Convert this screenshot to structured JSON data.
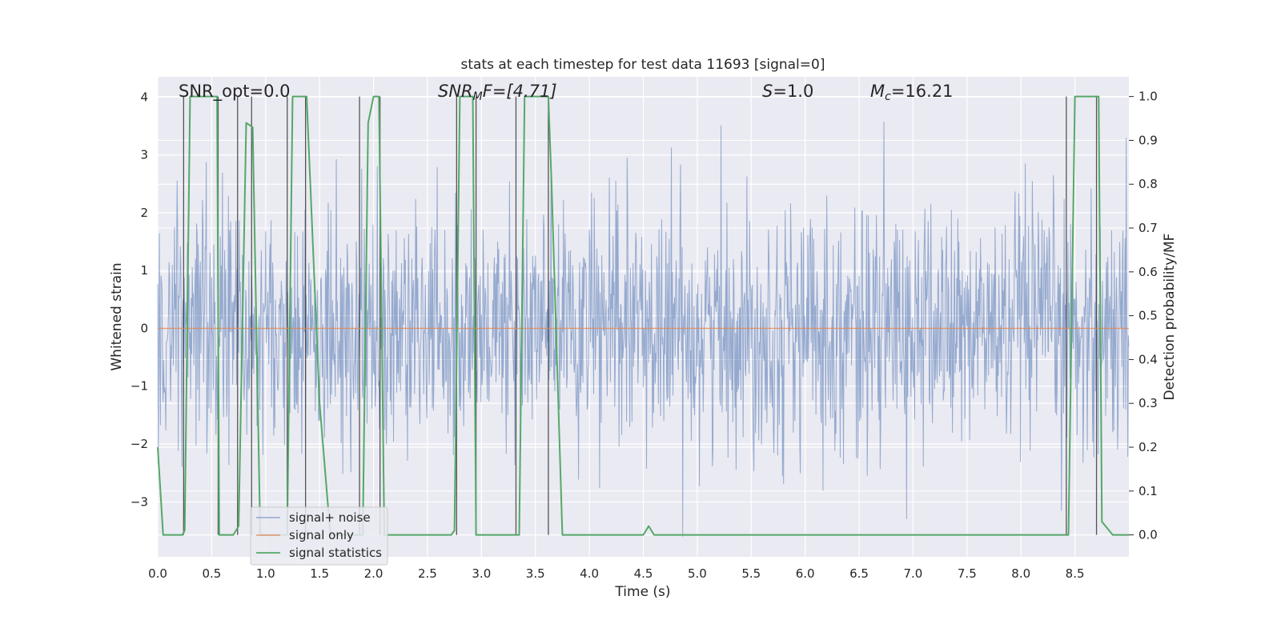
{
  "chart_data": {
    "type": "line",
    "title": "stats at each timestep for test data 11693 [signal=0]",
    "xlabel": "Time (s)",
    "ylabel": "Whitened strain",
    "ylabel_right": "Detection probability/MF",
    "xlim": [
      0.0,
      9.0
    ],
    "ylim": [
      -3.95,
      4.35
    ],
    "ylim_right": [
      -0.05,
      1.045
    ],
    "x_ticks": [
      "0.0",
      "0.5",
      "1.0",
      "1.5",
      "2.0",
      "2.5",
      "3.0",
      "3.5",
      "4.0",
      "4.5",
      "5.0",
      "5.5",
      "6.0",
      "6.5",
      "7.0",
      "7.5",
      "8.0",
      "8.5"
    ],
    "y_ticks": [
      "−3",
      "−2",
      "−1",
      "0",
      "1",
      "2",
      "3",
      "4"
    ],
    "y_ticks_right": [
      "0.0",
      "0.1",
      "0.2",
      "0.3",
      "0.4",
      "0.5",
      "0.6",
      "0.7",
      "0.8",
      "0.9",
      "1.0"
    ],
    "grid": true,
    "legend_placement": "lower-left",
    "annotations": {
      "snr_opt": "SNR_opt=0.0",
      "snr_mf_prefix": "SNR",
      "snr_mf_sub": "M",
      "snr_mf_suffix": "F=[4.71]",
      "s_var": "S",
      "s_value": "=1.0",
      "mc_var": "M",
      "mc_sub": "c",
      "mc_value": "=16.21"
    },
    "series": [
      {
        "name": "signal+ noise",
        "color": "#4c72b0",
        "description": "whitened strain noise, approx. Gaussian, range about -3.6 to 3.8"
      },
      {
        "name": "signal only",
        "color": "#dd8452",
        "x": [
          0.0,
          9.0
        ],
        "y": [
          0.0,
          0.0
        ]
      },
      {
        "name": "signal statistics",
        "color": "#55a868",
        "axis": "right",
        "x": [
          0.0,
          0.05,
          0.15,
          0.23,
          0.25,
          0.3,
          0.55,
          0.57,
          0.63,
          0.7,
          0.75,
          0.82,
          0.88,
          0.95,
          1.0,
          1.15,
          1.2,
          1.25,
          1.3,
          1.38,
          1.5,
          1.6,
          1.7,
          1.85,
          1.9,
          1.95,
          2.0,
          2.05,
          2.1,
          2.2,
          2.5,
          2.72,
          2.75,
          2.8,
          2.92,
          2.95,
          3.05,
          3.32,
          3.35,
          3.4,
          3.55,
          3.62,
          3.65,
          3.75,
          4.0,
          4.5,
          4.55,
          4.6,
          4.65,
          5.0,
          6.0,
          7.0,
          8.0,
          8.44,
          8.5,
          8.6,
          8.72,
          8.75,
          8.85,
          9.0
        ],
        "y": [
          0.2,
          0.0,
          0.0,
          0.0,
          0.01,
          1.0,
          1.0,
          0.0,
          0.0,
          0.0,
          0.02,
          0.94,
          0.93,
          0.0,
          0.0,
          0.0,
          0.0,
          1.0,
          1.0,
          1.0,
          0.3,
          0.0,
          0.0,
          0.0,
          0.0,
          0.94,
          1.0,
          1.0,
          0.0,
          0.0,
          0.0,
          0.0,
          0.01,
          1.0,
          1.0,
          0.0,
          0.0,
          0.0,
          0.0,
          1.0,
          1.0,
          1.0,
          0.8,
          0.0,
          0.0,
          0.0,
          0.02,
          0.0,
          0.0,
          0.0,
          0.0,
          0.0,
          0.0,
          0.0,
          1.0,
          1.0,
          1.0,
          0.03,
          0.0,
          0.0
        ]
      }
    ],
    "vertical_markers_x": [
      0.24,
      0.56,
      0.74,
      0.87,
      1.2,
      1.37,
      1.87,
      2.06,
      2.77,
      2.95,
      3.32,
      3.62,
      8.42,
      8.7
    ]
  }
}
